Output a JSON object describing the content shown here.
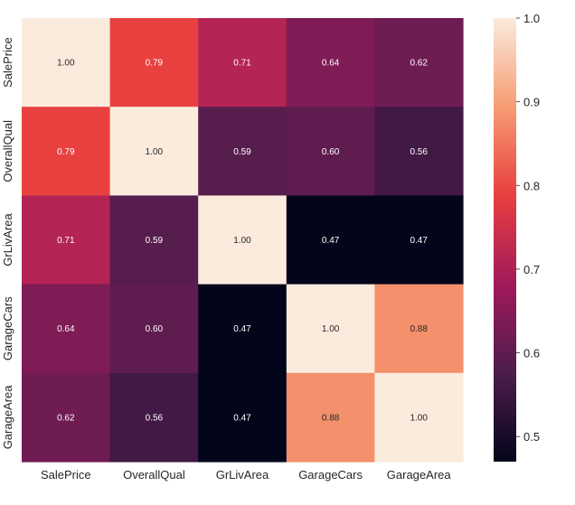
{
  "chart_data": {
    "type": "heatmap",
    "title": "",
    "xlabel": "",
    "ylabel": "",
    "x_categories": [
      "SalePrice",
      "OverallQual",
      "GrLivArea",
      "GarageCars",
      "GarageArea"
    ],
    "y_categories": [
      "SalePrice",
      "OverallQual",
      "GrLivArea",
      "GarageCars",
      "GarageArea"
    ],
    "values": [
      [
        1.0,
        0.79,
        0.71,
        0.64,
        0.62
      ],
      [
        0.79,
        1.0,
        0.59,
        0.6,
        0.56
      ],
      [
        0.71,
        0.59,
        1.0,
        0.47,
        0.47
      ],
      [
        0.64,
        0.6,
        0.47,
        1.0,
        0.88
      ],
      [
        0.62,
        0.56,
        0.47,
        0.88,
        1.0
      ]
    ],
    "value_labels": [
      [
        "1.00",
        "0.79",
        "0.71",
        "0.64",
        "0.62"
      ],
      [
        "0.79",
        "1.00",
        "0.59",
        "0.60",
        "0.56"
      ],
      [
        "0.71",
        "0.59",
        "1.00",
        "0.47",
        "0.47"
      ],
      [
        "0.64",
        "0.60",
        "0.47",
        "1.00",
        "0.88"
      ],
      [
        "0.62",
        "0.56",
        "0.47",
        "0.88",
        "1.00"
      ]
    ],
    "colormap": "rocket",
    "colorbar": {
      "range": [
        0.47,
        1.0
      ],
      "ticks": [
        0.5,
        0.6,
        0.7,
        0.8,
        0.9,
        1.0
      ],
      "tick_labels": [
        "0.5",
        "0.6",
        "0.7",
        "0.8",
        "0.9",
        "1.0"
      ],
      "placement": "right"
    },
    "grid": false,
    "annotated": true
  },
  "colors": {
    "rocket_stops": [
      "#03051a",
      "#4c1d4b",
      "#a11a5b",
      "#e83f3f",
      "#f69c73",
      "#faebdd"
    ],
    "label_light": "#ffffff",
    "label_dark": "#262626"
  }
}
